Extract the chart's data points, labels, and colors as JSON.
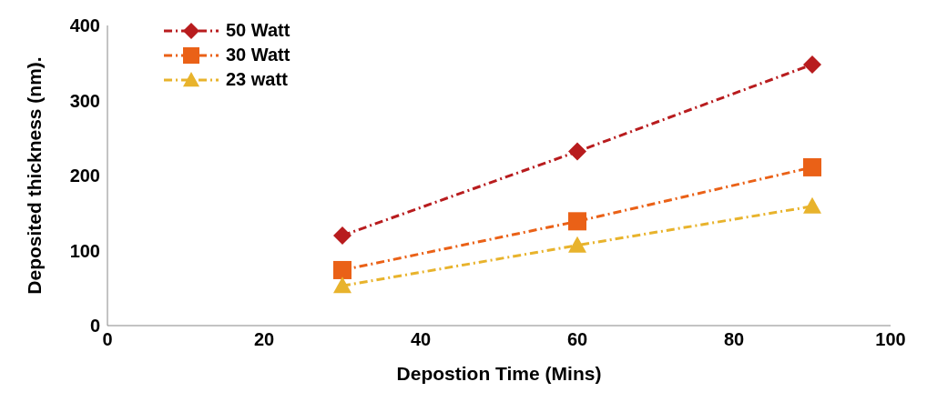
{
  "chart_data": {
    "type": "line",
    "xlabel": "Depostion Time (Mins)",
    "ylabel": "Deposited thickness (nm).",
    "x": [
      30,
      60,
      90
    ],
    "series": [
      {
        "name": "50 Watt",
        "color": "#b81c1e",
        "values": [
          120,
          232,
          348
        ],
        "marker": "diamond"
      },
      {
        "name": "30 Watt",
        "color": "#ea6117",
        "values": [
          74,
          139,
          211
        ],
        "marker": "square"
      },
      {
        "name": "23 watt",
        "color": "#e8b32c",
        "values": [
          53,
          107,
          159
        ],
        "marker": "triangle"
      }
    ],
    "xlim": [
      0,
      100
    ],
    "xticks": [
      0,
      20,
      40,
      60,
      80,
      100
    ],
    "ylim": [
      0,
      400
    ],
    "yticks": [
      0,
      100,
      200,
      300,
      400
    ],
    "grid": false,
    "legend": "top left",
    "line_style": "dashed"
  }
}
